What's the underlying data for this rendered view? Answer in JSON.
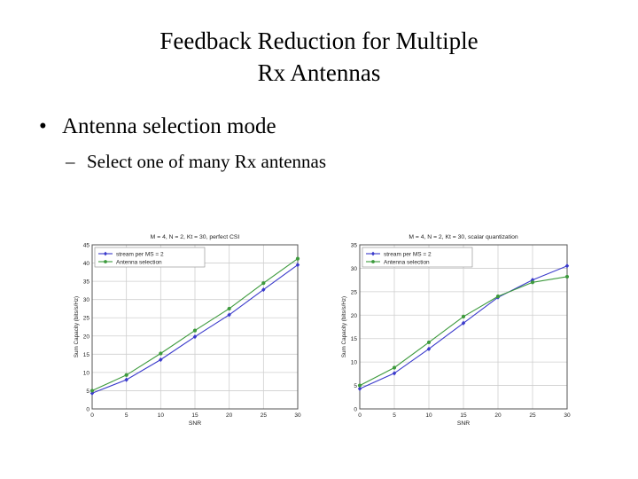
{
  "slide": {
    "title_line1": "Feedback Reduction for Multiple",
    "title_line2": "Rx Antennas",
    "bullet": "Antenna selection mode",
    "bullet_marker": "•",
    "sub_bullet": "Select one of many Rx antennas",
    "sub_marker": "–"
  },
  "colors": {
    "series1": "#3a3acb",
    "series2": "#3d9a3d",
    "grid": "#cfcfcf",
    "frame": "#555555"
  },
  "chart_data": [
    {
      "type": "line",
      "title": "M = 4, N = 2, Kt = 30, perfect CSI",
      "xlabel": "SNR",
      "ylabel": "Sum Capacity (bits/s/Hz)",
      "xlim": [
        0,
        30
      ],
      "ylim": [
        0,
        45
      ],
      "xticks": [
        0,
        5,
        10,
        15,
        20,
        25,
        30
      ],
      "yticks": [
        0,
        5,
        10,
        15,
        20,
        25,
        30,
        35,
        40,
        45
      ],
      "grid": true,
      "legend_position": "top-left",
      "x": [
        0,
        5,
        10,
        15,
        20,
        25,
        30
      ],
      "series": [
        {
          "name": "stream per MS = 2",
          "marker": "diamond",
          "values": [
            4.3,
            8.0,
            13.5,
            19.8,
            25.8,
            32.7,
            39.5
          ]
        },
        {
          "name": "Antenna selection",
          "marker": "circle",
          "values": [
            5.0,
            9.3,
            15.2,
            21.5,
            27.5,
            34.5,
            41.2
          ]
        }
      ]
    },
    {
      "type": "line",
      "title": "M = 4, N = 2, Kt = 30, scalar quantization",
      "xlabel": "SNR",
      "ylabel": "Sum Capacity (bits/s/Hz)",
      "xlim": [
        0,
        30
      ],
      "ylim": [
        0,
        35
      ],
      "xticks": [
        0,
        5,
        10,
        15,
        20,
        25,
        30
      ],
      "yticks": [
        0,
        5,
        10,
        15,
        20,
        25,
        30,
        35
      ],
      "grid": true,
      "legend_position": "top-left",
      "x": [
        0,
        5,
        10,
        15,
        20,
        25,
        30
      ],
      "series": [
        {
          "name": "stream per MS = 2",
          "marker": "diamond",
          "values": [
            4.3,
            7.6,
            12.8,
            18.3,
            23.8,
            27.5,
            30.5
          ]
        },
        {
          "name": "Antenna selection",
          "marker": "circle",
          "values": [
            5.0,
            8.8,
            14.2,
            19.7,
            24.0,
            27.0,
            28.2
          ]
        }
      ]
    }
  ]
}
